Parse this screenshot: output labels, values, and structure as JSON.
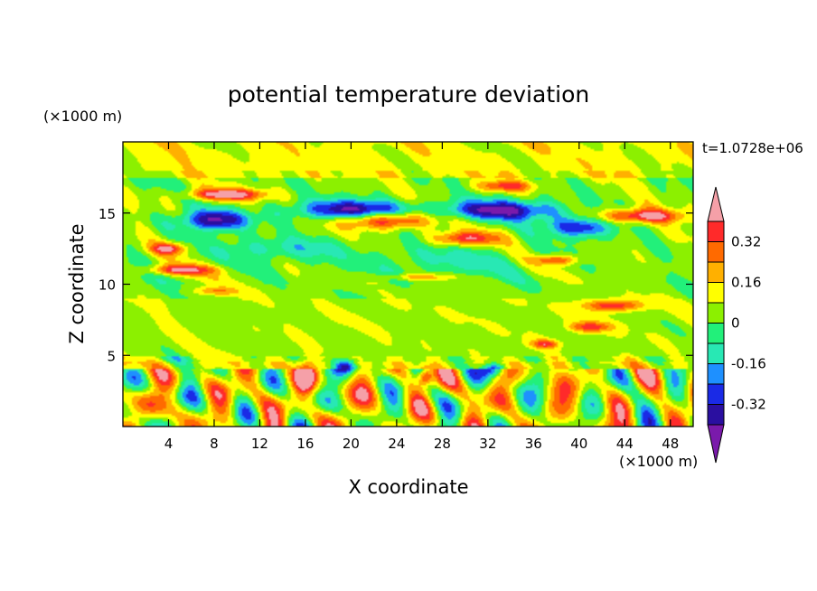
{
  "chart_data": {
    "type": "heatmap",
    "title": "potential temperature deviation",
    "xlabel": "X coordinate",
    "ylabel": "Z coordinate",
    "x_unit": "(×1000 m)",
    "y_unit": "(×1000 m)",
    "time_label": "t=1.0728e+06",
    "xlim": [
      0,
      50
    ],
    "ylim": [
      0,
      20
    ],
    "x_ticks": [
      4,
      8,
      12,
      16,
      20,
      24,
      28,
      32,
      36,
      40,
      44,
      48
    ],
    "y_ticks": [
      5,
      10,
      15
    ],
    "colorbar": {
      "levels": [
        -0.48,
        -0.4,
        -0.32,
        -0.24,
        -0.16,
        -0.08,
        0,
        0.08,
        0.16,
        0.24,
        0.32,
        0.4
      ],
      "tick_labels": [
        "0.32",
        "0.16",
        "0",
        "-0.16",
        "-0.32"
      ],
      "tick_values": [
        0.32,
        0.16,
        0,
        -0.16,
        -0.32
      ],
      "colors": [
        "#7a1aab",
        "#2a0fa0",
        "#1a2ae6",
        "#1e90ff",
        "#28e8b4",
        "#22f07a",
        "#8cf000",
        "#ffff00",
        "#ffb000",
        "#ff6a00",
        "#ff2a2a",
        "#f5a0a8"
      ]
    },
    "features": [
      {
        "x": 20,
        "z": 15.2,
        "sx": 5,
        "sz": 0.7,
        "v": -0.45
      },
      {
        "x": 8,
        "z": 14.5,
        "sx": 3,
        "sz": 0.7,
        "v": -0.45
      },
      {
        "x": 33,
        "z": 15.2,
        "sx": 5,
        "sz": 0.7,
        "v": -0.45
      },
      {
        "x": 40,
        "z": 14,
        "sx": 3,
        "sz": 0.7,
        "v": -0.35
      },
      {
        "x": 9,
        "z": 16.3,
        "sx": 3.5,
        "sz": 0.4,
        "v": 0.42
      },
      {
        "x": 23,
        "z": 14.5,
        "sx": 4,
        "sz": 0.6,
        "v": 0.42
      },
      {
        "x": 45.5,
        "z": 14.8,
        "sx": 3.5,
        "sz": 0.5,
        "v": 0.42
      },
      {
        "x": 30,
        "z": 13.2,
        "sx": 3,
        "sz": 0.5,
        "v": 0.35
      },
      {
        "x": 33.5,
        "z": 16.9,
        "sx": 2.5,
        "sz": 0.4,
        "v": 0.3
      },
      {
        "x": 4,
        "z": 12.5,
        "sx": 1.5,
        "sz": 0.4,
        "v": 0.35
      },
      {
        "x": 5,
        "z": 11,
        "sx": 3,
        "sz": 0.35,
        "v": 0.35
      },
      {
        "x": 38,
        "z": 11.7,
        "sx": 2,
        "sz": 0.35,
        "v": 0.3
      },
      {
        "x": 43,
        "z": 8.5,
        "sx": 2.5,
        "sz": 0.4,
        "v": 0.35
      },
      {
        "x": 41,
        "z": 7,
        "sx": 1.8,
        "sz": 0.35,
        "v": 0.3
      },
      {
        "x": 8,
        "z": 9.5,
        "sx": 2,
        "sz": 0.3,
        "v": 0.2
      },
      {
        "x": 26,
        "z": 10.5,
        "sx": 3,
        "sz": 0.25,
        "v": 0.2
      },
      {
        "x": 14,
        "z": 12.5,
        "sx": 6,
        "sz": 0.8,
        "v": -0.16
      },
      {
        "x": 28,
        "z": 11.5,
        "sx": 8,
        "sz": 1.2,
        "v": -0.12
      },
      {
        "x": 16,
        "z": 3.5,
        "sx": 0.8,
        "sz": 1.0,
        "v": 0.35
      },
      {
        "x": 26.5,
        "z": 3.5,
        "sx": 0.6,
        "sz": 0.6,
        "v": 0.35
      },
      {
        "x": 37,
        "z": 5.8,
        "sx": 1.2,
        "sz": 0.3,
        "v": 0.3
      },
      {
        "x": 19.5,
        "z": 4.2,
        "sx": 1.0,
        "sz": 0.5,
        "v": -0.4
      },
      {
        "x": 32.5,
        "z": 4.0,
        "sx": 1.0,
        "sz": 0.5,
        "v": -0.35
      }
    ]
  }
}
